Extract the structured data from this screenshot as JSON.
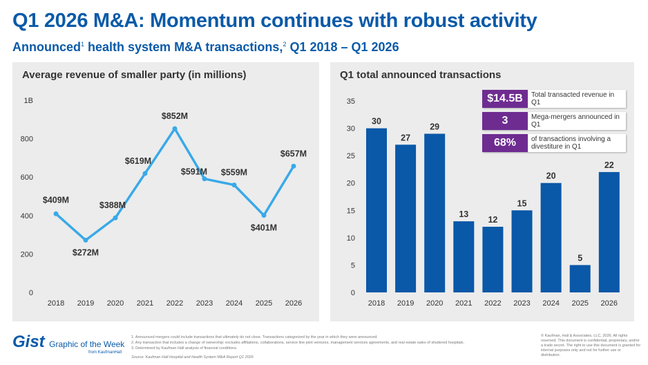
{
  "header": {
    "title": "Q1 2026 M&A: Momentum continues with robust activity",
    "subtitle_a": "Announced",
    "sup1": "1",
    "subtitle_b": " health system M&A transactions,",
    "sup2": "2",
    "subtitle_c": " Q1 2018 – Q1 2026"
  },
  "chart_data": [
    {
      "type": "line",
      "title": "Average revenue of smaller party (in millions)",
      "categories": [
        "2018",
        "2019",
        "2020",
        "2021",
        "2022",
        "2023",
        "2024",
        "2025",
        "2026"
      ],
      "values": [
        409,
        272,
        388,
        619,
        852,
        591,
        559,
        401,
        657
      ],
      "data_labels": [
        "$409M",
        "$272M",
        "$388M",
        "$619M",
        "$852M",
        "$591M",
        "$559M",
        "$401M",
        "$657M"
      ],
      "yticks": [
        "0",
        "200",
        "400",
        "600",
        "800",
        "1B"
      ],
      "ylim": [
        0,
        1000
      ],
      "color": "#39a9e8",
      "grid": false
    },
    {
      "type": "bar",
      "title": "Q1 total announced transactions",
      "categories": [
        "2018",
        "2019",
        "2020",
        "2021",
        "2022",
        "2023",
        "2024",
        "2025",
        "2026"
      ],
      "values": [
        30,
        27,
        29,
        13,
        12,
        15,
        20,
        5,
        22
      ],
      "yticks": [
        "0",
        "5",
        "10",
        "15",
        "20",
        "25",
        "30",
        "35"
      ],
      "ylim": [
        0,
        35
      ],
      "color": "#0a58a8",
      "grid": false
    }
  ],
  "stats": [
    {
      "value": "$14.5B",
      "label": "Total transacted revenue in Q1"
    },
    {
      "value": "3",
      "label": "Mega-mergers announced in Q1"
    },
    {
      "value": "68%",
      "label": "of transactions involving a divestiture in Q1"
    }
  ],
  "colors": {
    "brand": "#0a5aa8",
    "stat": "#6e2c91",
    "panel": "#ececec"
  },
  "footer": {
    "notes": [
      "1.  Announced mergers could include transactions that ultimately do not close. Transactions categorized by the year in which they were announced.",
      "2.  Any transaction that includes a change of ownership: excludes affiliations, collaborations, service line joint ventures, management services agreements, and real estate sales of shuttered hospitals.",
      "3.  Determined by Kaufman Hall analysis of financial conditions."
    ],
    "source": "Source: Kaufman Hall Hospital and Health System M&A Report Q1 2026",
    "copyright": "© Kaufman, Hall & Associates, LLC, 2026. All rights reserved. This document is confidential, proprietary, and/or a trade secret. The right to use this document is granted for internal purposes only and not for further use or distribution.",
    "logo": {
      "gist": "Gist",
      "tag": "Graphic of the Week",
      "from": "from KaufmanHall"
    }
  }
}
